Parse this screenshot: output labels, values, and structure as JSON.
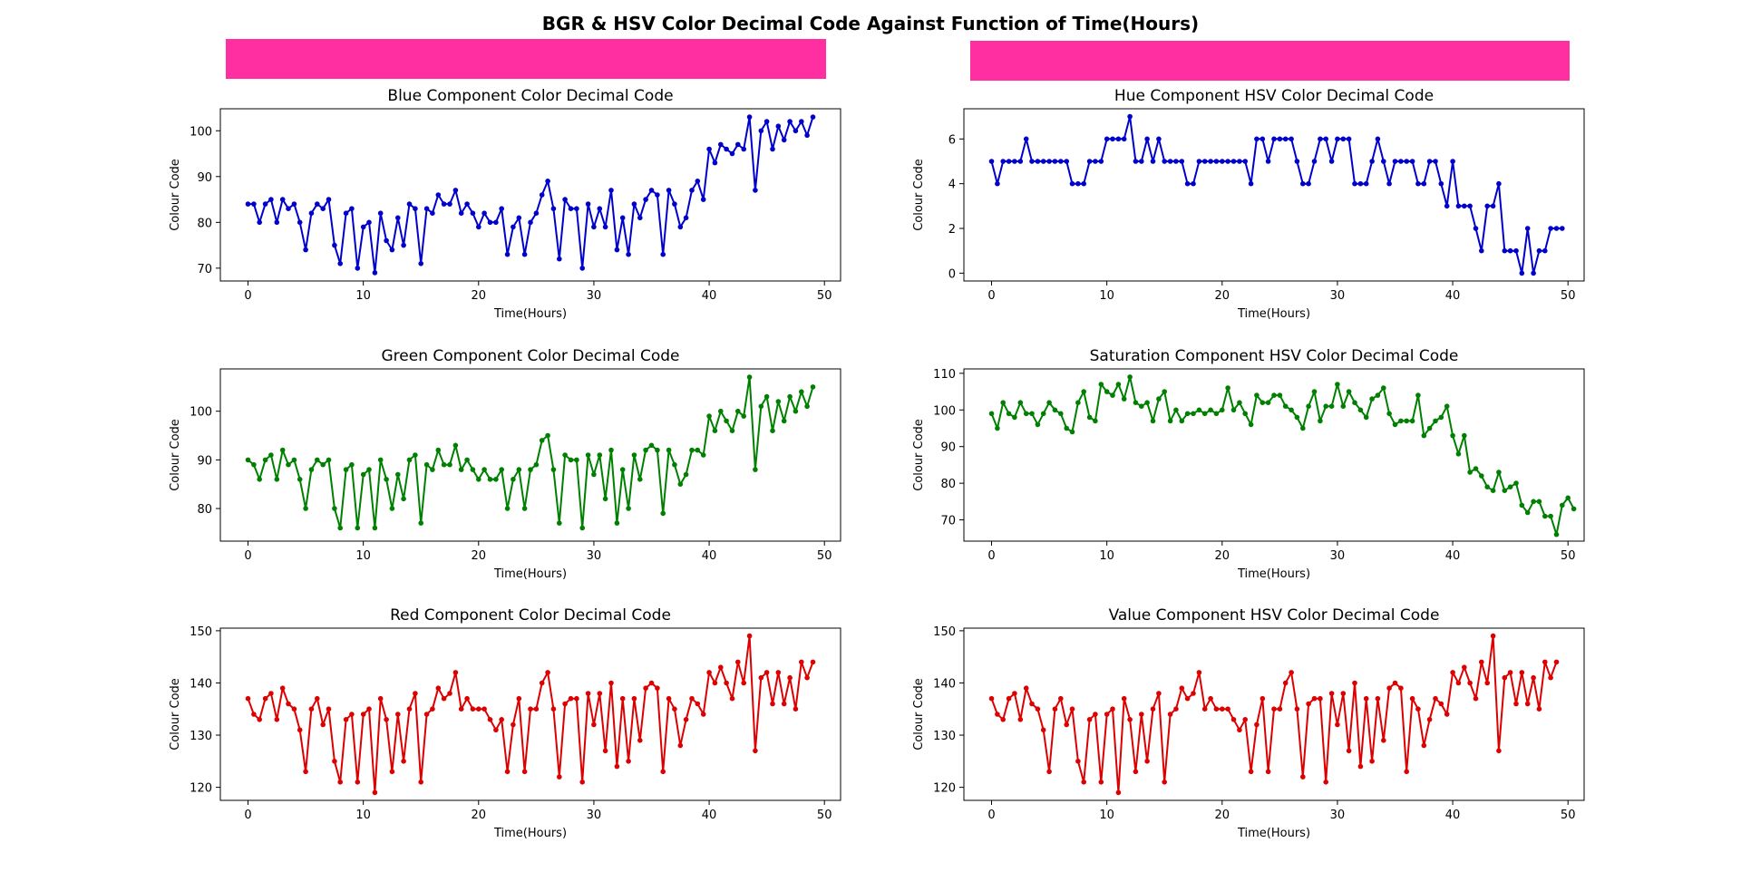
{
  "figure": {
    "title": "BGR & HSV Color Decimal Code Against Function of Time(Hours)",
    "swatch_color": "#FF2EA1"
  },
  "chart_data": [
    {
      "type": "line",
      "title": "Blue Component Color Decimal Code",
      "xlabel": "Time(Hours)",
      "ylabel": "Colour Code",
      "color": "#0000CC",
      "xlim": [
        -2.4,
        51.4
      ],
      "ylim": [
        67.2,
        104.8
      ],
      "xticks": [
        0,
        10,
        20,
        30,
        40,
        50
      ],
      "yticks": [
        70,
        80,
        90,
        100
      ],
      "x_step": 0.5,
      "values": [
        84,
        84,
        80,
        84,
        85,
        80,
        85,
        83,
        84,
        80,
        74,
        82,
        84,
        83,
        85,
        75,
        71,
        82,
        83,
        70,
        79,
        80,
        69,
        82,
        76,
        74,
        81,
        75,
        84,
        83,
        71,
        83,
        82,
        86,
        84,
        84,
        87,
        82,
        84,
        82,
        79,
        82,
        80,
        80,
        83,
        73,
        79,
        81,
        73,
        80,
        82,
        86,
        89,
        83,
        72,
        85,
        83,
        83,
        70,
        84,
        79,
        83,
        79,
        87,
        74,
        81,
        73,
        84,
        81,
        85,
        87,
        86,
        73,
        87,
        84,
        79,
        81,
        87,
        89,
        85,
        96,
        93,
        97,
        96,
        95,
        97,
        96,
        103,
        87,
        100,
        102,
        96,
        101,
        98,
        102,
        100,
        102,
        99,
        103
      ]
    },
    {
      "type": "line",
      "title": "Hue Component HSV Color Decimal Code",
      "xlabel": "Time(Hours)",
      "ylabel": "Colour Code",
      "color": "#0000CC",
      "xlim": [
        -2.4,
        51.4
      ],
      "ylim": [
        -0.35,
        7.35
      ],
      "xticks": [
        0,
        10,
        20,
        30,
        40,
        50
      ],
      "yticks": [
        0,
        2,
        4,
        6
      ],
      "x_step": 0.5,
      "values": [
        5,
        4,
        5,
        5,
        5,
        5,
        6,
        5,
        5,
        5,
        5,
        5,
        5,
        5,
        4,
        4,
        4,
        5,
        5,
        5,
        6,
        6,
        6,
        6,
        7,
        5,
        5,
        6,
        5,
        6,
        5,
        5,
        5,
        5,
        4,
        4,
        5,
        5,
        5,
        5,
        5,
        5,
        5,
        5,
        5,
        4,
        6,
        6,
        5,
        6,
        6,
        6,
        6,
        5,
        4,
        4,
        5,
        6,
        6,
        5,
        6,
        6,
        6,
        4,
        4,
        4,
        5,
        6,
        5,
        4,
        5,
        5,
        5,
        5,
        4,
        4,
        5,
        5,
        4,
        3,
        5,
        3,
        3,
        3,
        2,
        1,
        3,
        3,
        4,
        1,
        1,
        1,
        0,
        2,
        0,
        1,
        1,
        2,
        2,
        2
      ]
    },
    {
      "type": "line",
      "title": "Green Component Color Decimal Code",
      "xlabel": "Time(Hours)",
      "ylabel": "Colour Code",
      "color": "#008000",
      "xlim": [
        -2.4,
        51.4
      ],
      "ylim": [
        73.3,
        108.7
      ],
      "xticks": [
        0,
        10,
        20,
        30,
        40,
        50
      ],
      "yticks": [
        80,
        90,
        100
      ],
      "x_step": 0.5,
      "values": [
        90,
        89,
        86,
        90,
        91,
        86,
        92,
        89,
        90,
        86,
        80,
        88,
        90,
        89,
        90,
        80,
        76,
        88,
        89,
        76,
        87,
        88,
        76,
        90,
        86,
        80,
        87,
        82,
        90,
        91,
        77,
        89,
        88,
        92,
        89,
        89,
        93,
        88,
        90,
        88,
        86,
        88,
        86,
        86,
        88,
        80,
        86,
        88,
        80,
        88,
        89,
        94,
        95,
        88,
        77,
        91,
        90,
        90,
        76,
        91,
        87,
        91,
        82,
        92,
        77,
        88,
        80,
        91,
        86,
        92,
        93,
        92,
        79,
        92,
        89,
        85,
        87,
        92,
        92,
        91,
        99,
        96,
        100,
        98,
        96,
        100,
        99,
        107,
        88,
        101,
        103,
        96,
        102,
        98,
        103,
        100,
        104,
        101,
        105
      ]
    },
    {
      "type": "line",
      "title": "Saturation Component HSV Color Decimal Code",
      "xlabel": "Time(Hours)",
      "ylabel": "Colour Code",
      "color": "#008000",
      "xlim": [
        -2.4,
        51.4
      ],
      "ylim": [
        64.2,
        111.2
      ],
      "xticks": [
        0,
        10,
        20,
        30,
        40,
        50
      ],
      "yticks": [
        70,
        80,
        90,
        100,
        110
      ],
      "x_step": 0.5,
      "values": [
        99,
        95,
        102,
        99,
        98,
        102,
        99,
        99,
        96,
        99,
        102,
        100,
        99,
        95,
        94,
        102,
        105,
        98,
        97,
        107,
        105,
        104,
        107,
        103,
        109,
        102,
        101,
        102,
        97,
        103,
        105,
        97,
        100,
        97,
        99,
        99,
        100,
        99,
        100,
        99,
        100,
        106,
        100,
        102,
        99,
        96,
        104,
        102,
        102,
        104,
        104,
        101,
        100,
        98,
        95,
        101,
        105,
        97,
        101,
        101,
        107,
        101,
        105,
        102,
        100,
        98,
        103,
        104,
        106,
        99,
        96,
        97,
        97,
        97,
        104,
        93,
        95,
        97,
        98,
        101,
        93,
        88,
        93,
        83,
        84,
        82,
        79,
        78,
        83,
        78,
        79,
        80,
        74,
        72,
        75,
        75,
        71,
        71,
        66,
        74,
        76,
        73
      ]
    },
    {
      "type": "line",
      "title": "Red Component Color Decimal Code",
      "xlabel": "Time(Hours)",
      "ylabel": "Colour Code",
      "color": "#DD0000",
      "xlim": [
        -2.4,
        51.4
      ],
      "ylim": [
        117.5,
        150.5
      ],
      "xticks": [
        0,
        10,
        20,
        30,
        40,
        50
      ],
      "yticks": [
        120,
        130,
        140,
        150
      ],
      "x_step": 0.5,
      "values": [
        137,
        134,
        133,
        137,
        138,
        133,
        139,
        136,
        135,
        131,
        123,
        135,
        137,
        132,
        135,
        125,
        121,
        133,
        134,
        121,
        134,
        135,
        119,
        137,
        133,
        123,
        134,
        125,
        135,
        138,
        121,
        134,
        135,
        139,
        137,
        138,
        142,
        135,
        137,
        135,
        135,
        135,
        133,
        131,
        133,
        123,
        132,
        137,
        123,
        135,
        135,
        140,
        142,
        135,
        122,
        136,
        137,
        137,
        121,
        138,
        132,
        138,
        127,
        140,
        124,
        137,
        125,
        137,
        129,
        139,
        140,
        139,
        123,
        137,
        135,
        128,
        133,
        137,
        136,
        134,
        142,
        140,
        143,
        140,
        137,
        144,
        140,
        149,
        127,
        141,
        142,
        136,
        142,
        136,
        141,
        135,
        144,
        141,
        144
      ]
    },
    {
      "type": "line",
      "title": "Value Component HSV Color Decimal Code",
      "xlabel": "Time(Hours)",
      "ylabel": "Colour Code",
      "color": "#DD0000",
      "xlim": [
        -2.4,
        51.4
      ],
      "ylim": [
        117.5,
        150.5
      ],
      "xticks": [
        0,
        10,
        20,
        30,
        40,
        50
      ],
      "yticks": [
        120,
        130,
        140,
        150
      ],
      "x_step": 0.5,
      "values": [
        137,
        134,
        133,
        137,
        138,
        133,
        139,
        136,
        135,
        131,
        123,
        135,
        137,
        132,
        135,
        125,
        121,
        133,
        134,
        121,
        134,
        135,
        119,
        137,
        133,
        123,
        134,
        125,
        135,
        138,
        121,
        134,
        135,
        139,
        137,
        138,
        142,
        135,
        137,
        135,
        135,
        135,
        133,
        131,
        133,
        123,
        132,
        137,
        123,
        135,
        135,
        140,
        142,
        135,
        122,
        136,
        137,
        137,
        121,
        138,
        132,
        138,
        127,
        140,
        124,
        137,
        125,
        137,
        129,
        139,
        140,
        139,
        123,
        137,
        135,
        128,
        133,
        137,
        136,
        134,
        142,
        140,
        143,
        140,
        137,
        144,
        140,
        149,
        127,
        141,
        142,
        136,
        142,
        136,
        141,
        135,
        144,
        141,
        144
      ]
    }
  ]
}
